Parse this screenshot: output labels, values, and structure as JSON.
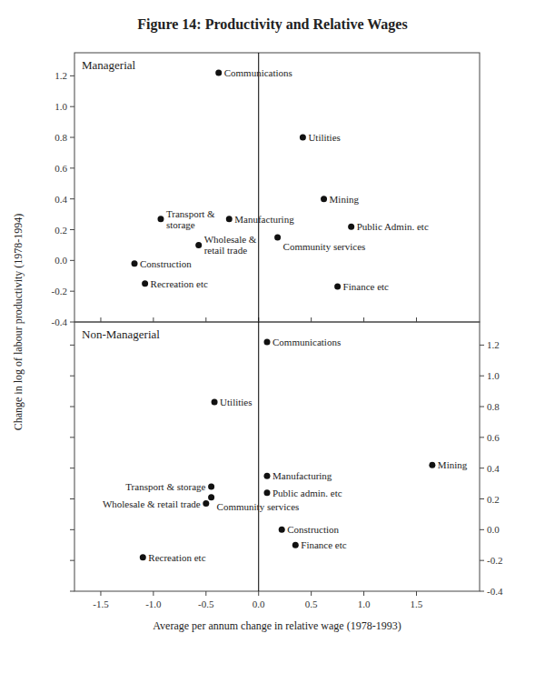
{
  "chart_data": [
    {
      "type": "scatter",
      "title": "Figure 14: Productivity and Relative Wages",
      "subtitle": "Managerial",
      "ylabel": "Change in log of labour productivity (1978-1994)",
      "labels": [
        "Communications",
        "Utilities",
        "Transport &\nstorage",
        "Manufacturing",
        "Mining",
        "Public Admin. etc",
        "Construction",
        "Wholesale &\nretail trade",
        "Community services",
        "Recreation etc",
        "Finance etc"
      ],
      "x": [
        -0.38,
        0.42,
        -0.93,
        -0.28,
        0.62,
        0.88,
        -1.18,
        -0.57,
        0.18,
        -1.08,
        0.75
      ],
      "values": [
        1.22,
        0.8,
        0.27,
        0.27,
        0.4,
        0.22,
        -0.02,
        0.1,
        0.15,
        -0.15,
        -0.17
      ],
      "color": "#111111",
      "xlim": [
        -1.75,
        2.1
      ],
      "ylim": [
        -0.4,
        1.35
      ],
      "xticks": [
        -1.5,
        {
          "value": -1.0,
          "label": "-1.0"
        },
        -0.5,
        {
          "value": 0.0,
          "label": "0.0"
        },
        0.5,
        {
          "value": 1.0,
          "label": "1.0"
        },
        1.5
      ],
      "yticks": [
        -0.4,
        -0.2,
        {
          "value": 0.0,
          "label": "0.0"
        },
        0.2,
        0.4,
        0.6,
        0.8,
        {
          "value": 1.0,
          "label": "1.0"
        },
        1.2
      ],
      "grid": false,
      "tick_labels": "y",
      "vline": 0.0
    },
    {
      "type": "scatter",
      "subtitle": "Non-Managerial",
      "xlabel": "Average per annum change in relative wage (1978-1993)",
      "labels": [
        "Communications",
        "Utilities",
        "Mining",
        "Manufacturing",
        "Transport & storage",
        "Public admin. etc",
        "Community services",
        "Wholesale & retail trade",
        "Construction",
        "Finance etc",
        "Recreation etc"
      ],
      "x": [
        0.08,
        -0.42,
        1.65,
        0.08,
        -0.45,
        0.08,
        -0.45,
        -0.5,
        0.22,
        0.35,
        -1.1
      ],
      "values": [
        1.22,
        0.83,
        0.42,
        0.35,
        0.28,
        0.24,
        0.21,
        0.17,
        0.0,
        -0.1,
        -0.18
      ],
      "color": "#111111",
      "xlim": [
        -1.75,
        2.1
      ],
      "ylim": [
        -0.4,
        1.35
      ],
      "xticks": [
        -1.5,
        {
          "value": -1.0,
          "label": "-1.0"
        },
        -0.5,
        {
          "value": 0.0,
          "label": "0.0"
        },
        0.5,
        {
          "value": 1.0,
          "label": "1.0"
        },
        1.5
      ],
      "yticks": [
        -0.4,
        -0.2,
        {
          "value": 0.0,
          "label": "0.0"
        },
        0.2,
        0.4,
        0.6,
        0.8,
        {
          "value": 1.0,
          "label": "1.0"
        },
        1.2
      ],
      "grid": false,
      "vline": 0.0
    }
  ]
}
